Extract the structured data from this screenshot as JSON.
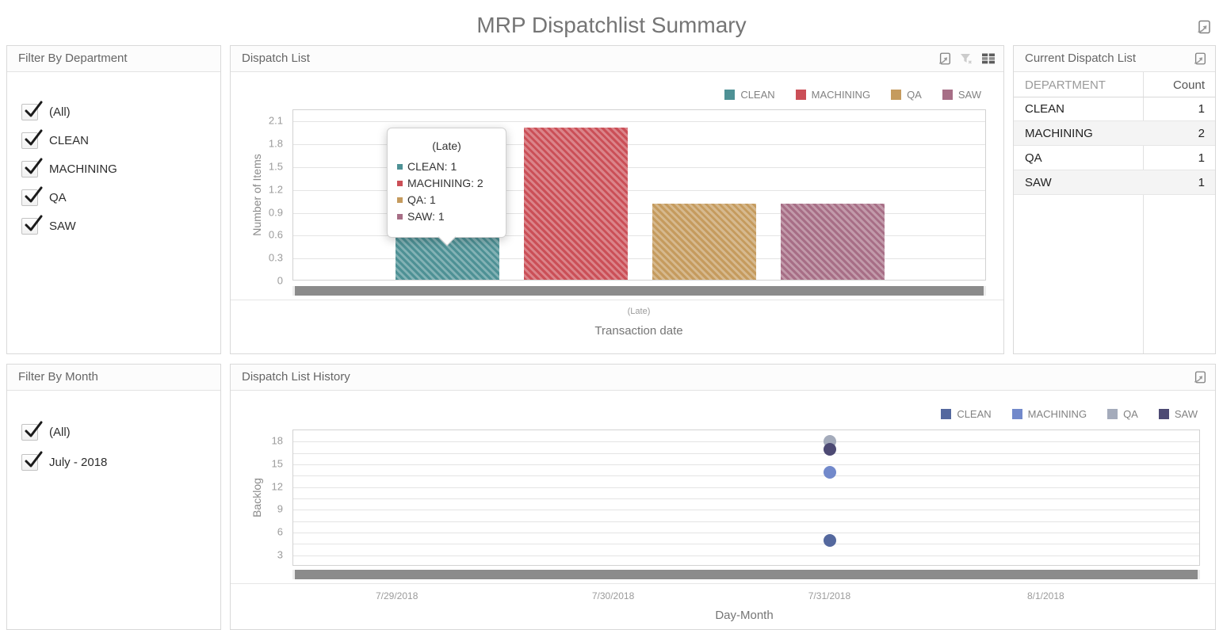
{
  "page": {
    "title": "MRP Dispatchlist Summary"
  },
  "filter_department": {
    "title": "Filter By Department",
    "options": [
      {
        "label": "(All)",
        "checked": true
      },
      {
        "label": "CLEAN",
        "checked": true
      },
      {
        "label": "MACHINING",
        "checked": true
      },
      {
        "label": "QA",
        "checked": true
      },
      {
        "label": "SAW",
        "checked": true
      }
    ]
  },
  "filter_month": {
    "title": "Filter By Month",
    "options": [
      {
        "label": "(All)",
        "checked": true
      },
      {
        "label": "July - 2018",
        "checked": true
      }
    ]
  },
  "dispatch_list_panel": {
    "title": "Dispatch List"
  },
  "current_dispatch": {
    "title": "Current Dispatch List",
    "columns": [
      "DEPARTMENT",
      "Count"
    ],
    "rows": [
      {
        "department": "CLEAN",
        "count": 1
      },
      {
        "department": "MACHINING",
        "count": 2
      },
      {
        "department": "QA",
        "count": 1
      },
      {
        "department": "SAW",
        "count": 1
      }
    ]
  },
  "history_panel": {
    "title": "Dispatch List History"
  },
  "icons": {
    "export": "export-icon",
    "filter_disabled": "filter-x-icon",
    "grid": "grid-icon"
  },
  "chart_data": [
    {
      "type": "bar",
      "title": "Dispatch List",
      "categories": [
        "(Late)"
      ],
      "series": [
        {
          "name": "CLEAN",
          "values": [
            1
          ],
          "color": "#4e9195"
        },
        {
          "name": "MACHINING",
          "values": [
            2
          ],
          "color": "#cb4f57"
        },
        {
          "name": "QA",
          "values": [
            1
          ],
          "color": "#c59b5e"
        },
        {
          "name": "SAW",
          "values": [
            1
          ],
          "color": "#a76e86"
        }
      ],
      "xlabel": "Transaction date",
      "ylabel": "Number of Items",
      "ylim": [
        0,
        2.25
      ],
      "yticks": [
        0,
        0.3,
        0.6,
        0.9,
        1.2,
        1.5,
        1.8,
        2.1
      ],
      "grid": true,
      "legend_position": "top-right",
      "tooltip": {
        "title": "(Late)",
        "items": [
          {
            "label": "CLEAN",
            "value": 1
          },
          {
            "label": "MACHINING",
            "value": 2
          },
          {
            "label": "QA",
            "value": 1
          },
          {
            "label": "SAW",
            "value": 1
          }
        ]
      }
    },
    {
      "type": "scatter",
      "title": "Dispatch List History",
      "x_categories": [
        "7/29/2018",
        "7/30/2018",
        "7/31/2018",
        "8/1/2018"
      ],
      "series": [
        {
          "name": "CLEAN",
          "color": "#54689e",
          "points": [
            {
              "x": "7/31/2018",
              "y": 5
            }
          ]
        },
        {
          "name": "MACHINING",
          "color": "#7289cb",
          "points": [
            {
              "x": "7/31/2018",
              "y": 14
            }
          ]
        },
        {
          "name": "QA",
          "color": "#a4abbb",
          "points": [
            {
              "x": "7/31/2018",
              "y": 18
            }
          ]
        },
        {
          "name": "SAW",
          "color": "#4d4a74",
          "points": [
            {
              "x": "7/31/2018",
              "y": 17
            }
          ]
        }
      ],
      "xlabel": "Day-Month",
      "ylabel": "Backlog",
      "ylim": [
        1.5,
        19.5
      ],
      "yticks": [
        3,
        6,
        9,
        12,
        15,
        18
      ],
      "ygrid_step": 1.5,
      "grid": true,
      "legend_position": "top-right"
    }
  ]
}
